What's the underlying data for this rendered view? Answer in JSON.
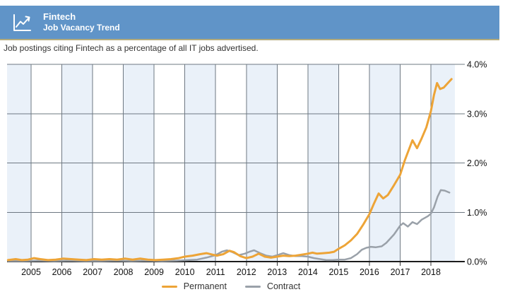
{
  "header": {
    "title": "Fintech",
    "subtitle": "Job Vacancy Trend",
    "icon": "trend-chart-icon"
  },
  "description": "Job postings citing Fintech as a percentage of all IT jobs advertised.",
  "colors": {
    "header_bg": "#6094c8",
    "header_border": "#b3ab7d",
    "permanent": "#eda437",
    "contract": "#9aa1a9",
    "band": "#eaf1f9",
    "grid": "#6e7882",
    "axis": "#1c1c1c",
    "tick_text": "#111111"
  },
  "chart_data": {
    "type": "line",
    "title": "Fintech Job Vacancy Trend",
    "xlabel": "",
    "ylabel": "",
    "unit": "% of all IT jobs advertised",
    "xlim": [
      2004.22,
      2018.78
    ],
    "ylim": [
      0,
      4
    ],
    "x_ticks": [
      2005,
      2006,
      2007,
      2008,
      2009,
      2010,
      2011,
      2012,
      2013,
      2014,
      2015,
      2016,
      2017,
      2018
    ],
    "y_ticks": [
      "4.0%",
      "3.0%",
      "2.0%",
      "1.0%",
      "0.0%"
    ],
    "grid": true,
    "legend_position": "bottom",
    "background_bands": "alternating yearly (even years shaded light blue)",
    "series": [
      {
        "name": "Permanent",
        "color": "#eda437",
        "points": [
          [
            2004.25,
            0.03
          ],
          [
            2004.5,
            0.05
          ],
          [
            2004.7,
            0.03
          ],
          [
            2004.9,
            0.04
          ],
          [
            2005.1,
            0.07
          ],
          [
            2005.3,
            0.05
          ],
          [
            2005.55,
            0.03
          ],
          [
            2005.8,
            0.04
          ],
          [
            2006.05,
            0.06
          ],
          [
            2006.3,
            0.05
          ],
          [
            2006.55,
            0.04
          ],
          [
            2006.8,
            0.03
          ],
          [
            2007.05,
            0.05
          ],
          [
            2007.3,
            0.04
          ],
          [
            2007.55,
            0.05
          ],
          [
            2007.8,
            0.04
          ],
          [
            2008.05,
            0.06
          ],
          [
            2008.3,
            0.04
          ],
          [
            2008.55,
            0.06
          ],
          [
            2008.8,
            0.04
          ],
          [
            2009.05,
            0.03
          ],
          [
            2009.3,
            0.04
          ],
          [
            2009.55,
            0.05
          ],
          [
            2009.8,
            0.07
          ],
          [
            2010.0,
            0.1
          ],
          [
            2010.25,
            0.12
          ],
          [
            2010.5,
            0.15
          ],
          [
            2010.7,
            0.17
          ],
          [
            2010.9,
            0.14
          ],
          [
            2011.05,
            0.12
          ],
          [
            2011.25,
            0.15
          ],
          [
            2011.45,
            0.22
          ],
          [
            2011.6,
            0.19
          ],
          [
            2011.8,
            0.11
          ],
          [
            2012.0,
            0.07
          ],
          [
            2012.2,
            0.1
          ],
          [
            2012.4,
            0.16
          ],
          [
            2012.6,
            0.1
          ],
          [
            2012.8,
            0.08
          ],
          [
            2013.0,
            0.1
          ],
          [
            2013.2,
            0.12
          ],
          [
            2013.4,
            0.11
          ],
          [
            2013.6,
            0.12
          ],
          [
            2013.8,
            0.14
          ],
          [
            2014.0,
            0.16
          ],
          [
            2014.15,
            0.18
          ],
          [
            2014.3,
            0.16
          ],
          [
            2014.5,
            0.17
          ],
          [
            2014.7,
            0.18
          ],
          [
            2014.85,
            0.2
          ],
          [
            2015.0,
            0.26
          ],
          [
            2015.2,
            0.33
          ],
          [
            2015.4,
            0.43
          ],
          [
            2015.6,
            0.56
          ],
          [
            2015.8,
            0.75
          ],
          [
            2016.0,
            0.96
          ],
          [
            2016.15,
            1.18
          ],
          [
            2016.3,
            1.38
          ],
          [
            2016.45,
            1.28
          ],
          [
            2016.6,
            1.35
          ],
          [
            2016.8,
            1.55
          ],
          [
            2017.0,
            1.76
          ],
          [
            2017.15,
            2.05
          ],
          [
            2017.3,
            2.3
          ],
          [
            2017.4,
            2.46
          ],
          [
            2017.55,
            2.3
          ],
          [
            2017.7,
            2.5
          ],
          [
            2017.85,
            2.72
          ],
          [
            2018.0,
            3.05
          ],
          [
            2018.1,
            3.38
          ],
          [
            2018.2,
            3.62
          ],
          [
            2018.3,
            3.5
          ],
          [
            2018.42,
            3.53
          ],
          [
            2018.55,
            3.62
          ],
          [
            2018.67,
            3.7
          ]
        ]
      },
      {
        "name": "Contract",
        "color": "#9aa1a9",
        "points": [
          [
            2004.25,
            0.01
          ],
          [
            2004.75,
            0.01
          ],
          [
            2005.25,
            0.02
          ],
          [
            2005.75,
            0.01
          ],
          [
            2006.25,
            0.02
          ],
          [
            2006.75,
            0.01
          ],
          [
            2007.25,
            0.01
          ],
          [
            2007.75,
            0.02
          ],
          [
            2008.25,
            0.01
          ],
          [
            2008.75,
            0.02
          ],
          [
            2009.25,
            0.01
          ],
          [
            2009.75,
            0.02
          ],
          [
            2010.1,
            0.03
          ],
          [
            2010.4,
            0.04
          ],
          [
            2010.7,
            0.08
          ],
          [
            2011.0,
            0.13
          ],
          [
            2011.2,
            0.2
          ],
          [
            2011.37,
            0.23
          ],
          [
            2011.55,
            0.19
          ],
          [
            2011.75,
            0.13
          ],
          [
            2011.95,
            0.16
          ],
          [
            2012.1,
            0.2
          ],
          [
            2012.25,
            0.23
          ],
          [
            2012.45,
            0.17
          ],
          [
            2012.65,
            0.12
          ],
          [
            2012.85,
            0.1
          ],
          [
            2013.0,
            0.13
          ],
          [
            2013.2,
            0.17
          ],
          [
            2013.4,
            0.13
          ],
          [
            2013.6,
            0.11
          ],
          [
            2013.8,
            0.11
          ],
          [
            2014.0,
            0.1
          ],
          [
            2014.2,
            0.07
          ],
          [
            2014.4,
            0.05
          ],
          [
            2014.6,
            0.03
          ],
          [
            2014.8,
            0.03
          ],
          [
            2015.0,
            0.04
          ],
          [
            2015.2,
            0.04
          ],
          [
            2015.4,
            0.07
          ],
          [
            2015.6,
            0.15
          ],
          [
            2015.75,
            0.24
          ],
          [
            2015.9,
            0.28
          ],
          [
            2016.05,
            0.3
          ],
          [
            2016.2,
            0.29
          ],
          [
            2016.4,
            0.31
          ],
          [
            2016.55,
            0.38
          ],
          [
            2016.8,
            0.55
          ],
          [
            2017.0,
            0.73
          ],
          [
            2017.1,
            0.78
          ],
          [
            2017.25,
            0.71
          ],
          [
            2017.4,
            0.8
          ],
          [
            2017.55,
            0.76
          ],
          [
            2017.7,
            0.85
          ],
          [
            2017.9,
            0.92
          ],
          [
            2018.0,
            0.97
          ],
          [
            2018.1,
            1.1
          ],
          [
            2018.22,
            1.32
          ],
          [
            2018.32,
            1.45
          ],
          [
            2018.45,
            1.44
          ],
          [
            2018.6,
            1.4
          ]
        ]
      }
    ]
  },
  "legend": {
    "items": [
      "Permanent",
      "Contract"
    ]
  }
}
